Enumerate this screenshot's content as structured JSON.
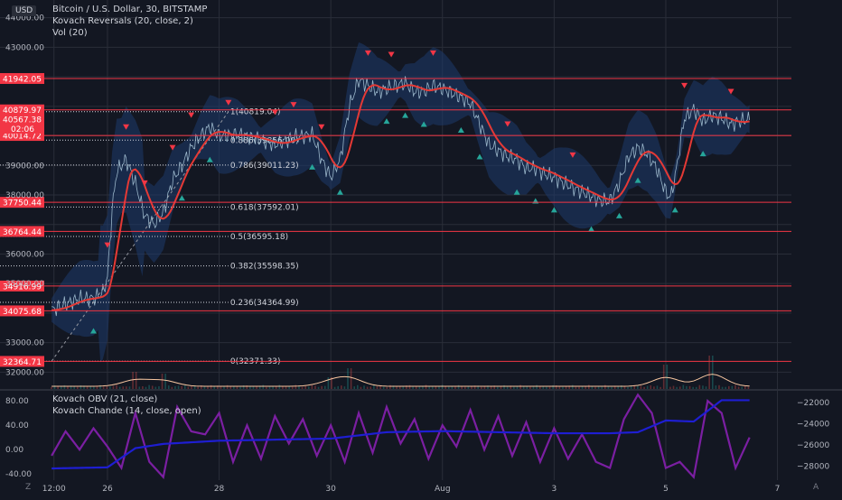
{
  "currency_badge": "USD",
  "legend_main": [
    "Bitcoin / U.S. Dollar, 30, BITSTAMP",
    "Kovach Reversals (20, close, 2)",
    "Vol (20)"
  ],
  "legend_sub": [
    "Kovach OBV (21, close)",
    "Kovach Chande (14, close, open)"
  ],
  "bottom_left_icon": "Z",
  "bottom_right_icon": "A",
  "price_axis_ticks": [
    "43000.00",
    "39000.00",
    "38000.00",
    "36000.00",
    "35000.00",
    "33000.00",
    "32000.00"
  ],
  "price_axis_top": "44000.00",
  "red_levels": [
    {
      "label": "41942.05",
      "price": 41942.05
    },
    {
      "label": "40879.97",
      "price": 40879.97
    },
    {
      "label": "40014.72",
      "price": 40014.72
    },
    {
      "label": "37750.44",
      "price": 37750.44
    },
    {
      "label": "36764.44",
      "price": 36764.44
    },
    {
      "label": "34916.99",
      "price": 34916.99
    },
    {
      "label": "34075.68",
      "price": 34075.68
    },
    {
      "label": "32364.71",
      "price": 32364.71
    }
  ],
  "last_price": {
    "label": "40567.38",
    "countdown": "02:06",
    "price": 40567.38
  },
  "fib_levels": [
    {
      "label": "1(40819.04)",
      "price": 40819.04
    },
    {
      "label": "0.886(39856.00)",
      "price": 39856.0
    },
    {
      "label": "0.786(39011.23)",
      "price": 39011.23
    },
    {
      "label": "0.618(37592.01)",
      "price": 37592.01
    },
    {
      "label": "0.5(36595.18)",
      "price": 36595.18
    },
    {
      "label": "0.382(35598.35)",
      "price": 35598.35
    },
    {
      "label": "0.236(34364.99)",
      "price": 34364.99
    },
    {
      "label": "0(32371.33)",
      "price": 32371.33
    }
  ],
  "osc_axis_ticks": [
    "80.00",
    "40.00",
    "0.00",
    "-40.00"
  ],
  "obv_axis_ticks": [
    "−22000",
    "−24000",
    "−26000",
    "−28000"
  ],
  "time_axis_ticks": [
    {
      "label": "12:00",
      "t": 0.5
    },
    {
      "label": "26",
      "t": 12
    },
    {
      "label": "28",
      "t": 36
    },
    {
      "label": "30",
      "t": 60
    },
    {
      "label": "Aug",
      "t": 84
    },
    {
      "label": "3",
      "t": 108
    },
    {
      "label": "5",
      "t": 132
    },
    {
      "label": "7",
      "t": 156
    }
  ],
  "colors": {
    "background": "#131722",
    "grid": "#2a2e39",
    "red": "#f23645",
    "green": "#26a69a",
    "band": "#1e3a6b",
    "ma": "#e53935",
    "obv": "#1e1ed2",
    "chande": "#7b1fa2",
    "axis_text": "#b2b5be"
  },
  "chart_data": {
    "type": "line",
    "series": [
      {
        "name": "Bitcoin / U.S. Dollar, 30, BITSTAMP",
        "x": [
          0,
          3,
          6,
          9,
          11,
          12,
          13,
          14,
          16,
          18,
          20,
          22,
          24,
          26,
          28,
          30,
          32,
          34,
          36,
          40,
          44,
          48,
          52,
          56,
          58,
          60,
          62,
          64,
          66,
          68,
          70,
          72,
          74,
          76,
          78,
          80,
          82,
          84,
          86,
          88,
          90,
          92,
          94,
          96,
          98,
          100,
          102,
          104,
          106,
          108,
          110,
          112,
          114,
          116,
          118,
          120,
          122,
          124,
          126,
          128,
          130,
          132,
          133,
          134,
          136,
          138,
          140,
          142,
          144,
          146,
          148,
          150
        ],
        "values": [
          34100,
          34300,
          34500,
          34500,
          34700,
          35200,
          37500,
          38800,
          39200,
          38400,
          37300,
          37000,
          37400,
          38500,
          39000,
          39600,
          40000,
          40300,
          40000,
          40050,
          39900,
          39700,
          39950,
          40050,
          39200,
          38600,
          39200,
          41000,
          41900,
          41700,
          41500,
          41600,
          41700,
          41800,
          41500,
          41500,
          41700,
          41600,
          41450,
          41300,
          41100,
          40400,
          39700,
          39500,
          39300,
          39200,
          38900,
          38900,
          38700,
          38600,
          38400,
          38250,
          38100,
          37950,
          37800,
          37800,
          38400,
          39300,
          39600,
          39400,
          38900,
          38100,
          37900,
          38600,
          40600,
          40900,
          40500,
          40700,
          40600,
          40400,
          40500,
          40567
        ]
      },
      {
        "name": "Kovach OBV (21, close)",
        "x": [
          0,
          12,
          18,
          24,
          36,
          48,
          60,
          72,
          84,
          96,
          108,
          120,
          126,
          132,
          138,
          144,
          150
        ],
        "values": [
          -28200,
          -28100,
          -26300,
          -25900,
          -25600,
          -25500,
          -25400,
          -24800,
          -24700,
          -24800,
          -24900,
          -24900,
          -24800,
          -23700,
          -23800,
          -21800,
          -21800
        ]
      },
      {
        "name": "Kovach Chande (14, close, open)",
        "x": [
          0,
          3,
          6,
          9,
          12,
          15,
          18,
          21,
          24,
          27,
          30,
          33,
          36,
          39,
          42,
          45,
          48,
          51,
          54,
          57,
          60,
          63,
          66,
          69,
          72,
          75,
          78,
          81,
          84,
          87,
          90,
          93,
          96,
          99,
          102,
          105,
          108,
          111,
          114,
          117,
          120,
          123,
          126,
          129,
          132,
          135,
          138,
          141,
          144,
          147,
          150
        ],
        "values": [
          -10,
          30,
          0,
          35,
          5,
          -30,
          60,
          -20,
          -45,
          70,
          30,
          25,
          60,
          -20,
          40,
          -15,
          55,
          10,
          50,
          -10,
          40,
          -20,
          60,
          -5,
          70,
          10,
          50,
          -15,
          40,
          5,
          65,
          0,
          55,
          -10,
          45,
          -20,
          35,
          -15,
          25,
          -20,
          -30,
          50,
          90,
          60,
          -30,
          -20,
          -45,
          80,
          60,
          -30,
          20
        ]
      }
    ],
    "ylim": [
      31400,
      44600
    ],
    "xlim": [
      -1,
      159
    ],
    "osc_ylim": [
      -50,
      95
    ],
    "obv_ylim": [
      -29300,
      -21000
    ],
    "volume_spikes": [
      {
        "x": 18,
        "v": 0.5
      },
      {
        "x": 24,
        "v": 0.45
      },
      {
        "x": 60,
        "v": 0.35
      },
      {
        "x": 64,
        "v": 0.6
      },
      {
        "x": 132,
        "v": 0.7
      },
      {
        "x": 142,
        "v": 0.95
      }
    ],
    "sell_signal_x": [
      12,
      16,
      20,
      26,
      30,
      38,
      48,
      52,
      58,
      68,
      73,
      82,
      98,
      112,
      136,
      146
    ],
    "buy_signal_x": [
      9,
      28,
      34,
      56,
      62,
      72,
      76,
      80,
      88,
      92,
      100,
      104,
      108,
      116,
      122,
      126,
      134,
      140
    ]
  }
}
